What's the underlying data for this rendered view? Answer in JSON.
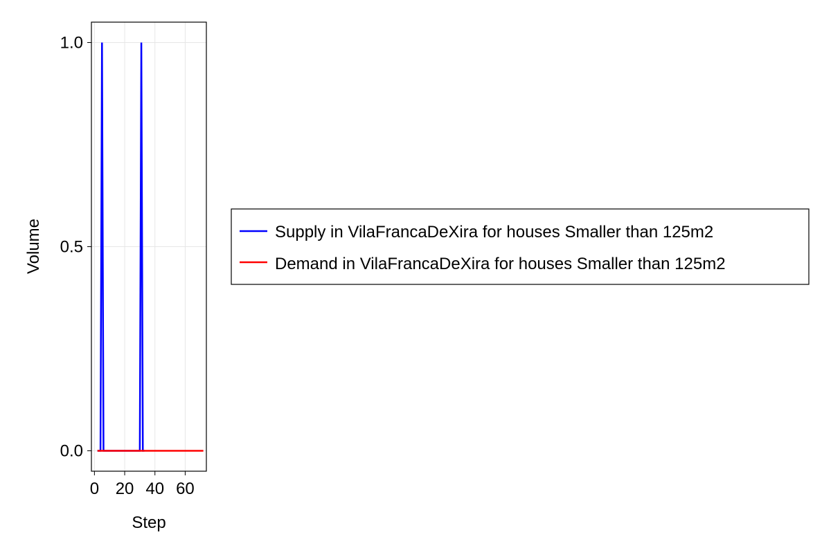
{
  "chart_data": {
    "type": "line",
    "title": "",
    "xlabel": "Step",
    "ylabel": "Volume",
    "xlim": [
      -2,
      74
    ],
    "ylim": [
      -0.05,
      1.05
    ],
    "x_ticks": [
      0,
      20,
      40,
      60
    ],
    "x_tick_labels": [
      "0",
      "20",
      "40",
      "60"
    ],
    "y_ticks": [
      0.0,
      0.5,
      1.0
    ],
    "y_tick_labels": [
      "0.0",
      "0.5",
      "1.0"
    ],
    "grid": true,
    "legend_position": "right",
    "series": [
      {
        "name": "Supply in VilaFrancaDeXira for houses Smaller than 125m2",
        "color": "#0000ff",
        "x": [
          2,
          3,
          4,
          5,
          6,
          7,
          29,
          30,
          31,
          32,
          33
        ],
        "y": [
          0,
          0,
          0,
          1,
          0,
          0,
          0,
          0,
          1,
          0,
          0
        ]
      },
      {
        "name": "Demand in VilaFrancaDeXira for houses Smaller than 125m2",
        "color": "#ff0000",
        "x": [
          2,
          72
        ],
        "y": [
          0,
          0
        ]
      }
    ]
  }
}
